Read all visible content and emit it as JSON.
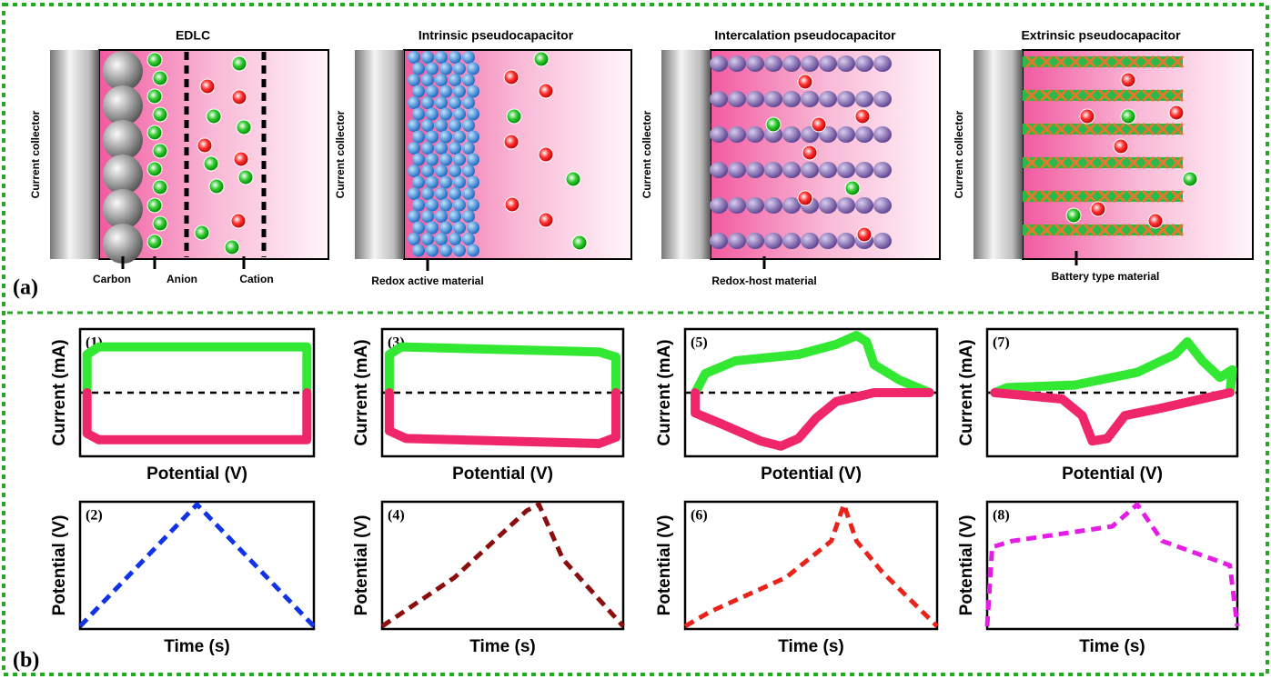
{
  "panel_a": {
    "label": "(a)",
    "cells": [
      {
        "title": "EDLC",
        "collector": "Current collector",
        "labels": [
          "Carbon",
          "Anion",
          "Cation"
        ]
      },
      {
        "title": "Intrinsic pseudocapacitor",
        "collector": "Current collector",
        "labels": [
          "Redox active material"
        ]
      },
      {
        "title": "Intercalation pseudocapacitor",
        "collector": "Current collector",
        "labels": [
          "Redox-host material"
        ]
      },
      {
        "title": "Extrinsic pseudocapacitor",
        "collector": "Current collector",
        "labels": [
          "Battery type material"
        ]
      }
    ]
  },
  "panel_b": {
    "label": "(b)",
    "cv": [
      {
        "label": "(1)",
        "ylabel": "Current (mA)",
        "xlabel": "Potential (V)"
      },
      {
        "label": "(3)",
        "ylabel": "Current (mA)",
        "xlabel": "Potential (V)"
      },
      {
        "label": "(5)",
        "ylabel": "Current (mA)",
        "xlabel": "Potential (V)"
      },
      {
        "label": "(7)",
        "ylabel": "Current (mA)",
        "xlabel": "Potential (V)"
      }
    ],
    "gcd": [
      {
        "label": "(2)",
        "ylabel": "Potential (V)",
        "xlabel": "Time (s)"
      },
      {
        "label": "(4)",
        "ylabel": "Potential (V)",
        "xlabel": "Time (s)"
      },
      {
        "label": "(6)",
        "ylabel": "Potential (V)",
        "xlabel": "Time (s)"
      },
      {
        "label": "(8)",
        "ylabel": "Potential (V)",
        "xlabel": "Time (s)"
      }
    ]
  }
}
